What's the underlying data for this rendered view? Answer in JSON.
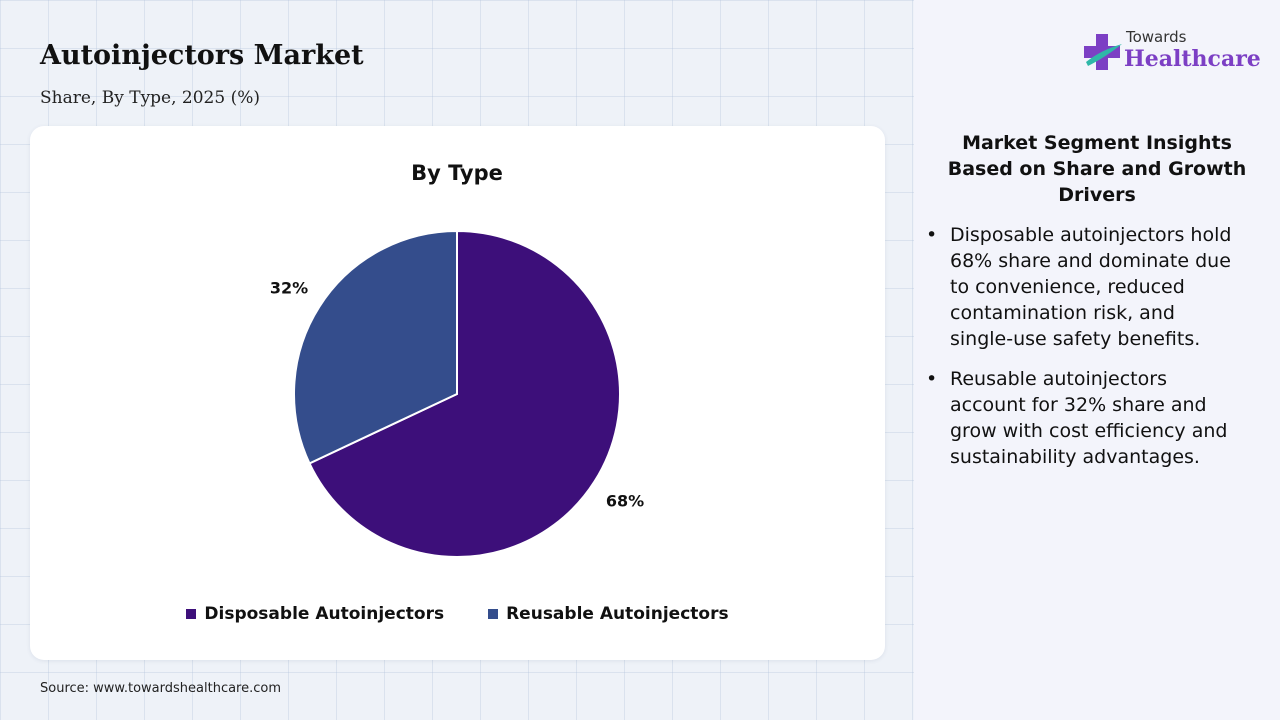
{
  "header": {
    "title": "Autoinjectors Market",
    "subtitle": "Share, By Type, 2025 (%)"
  },
  "chart_data": {
    "type": "pie",
    "title": "By Type",
    "unit": "%",
    "slices": [
      {
        "name": "Disposable Autoinjectors",
        "value": 68,
        "label": "68%",
        "color": "#3d0f7a"
      },
      {
        "name": "Reusable Autoinjectors",
        "value": 32,
        "label": "32%",
        "color": "#344d8c"
      }
    ],
    "start_angle_deg": 0,
    "direction": "clockwise",
    "legend_position": "bottom"
  },
  "source": "Source: www.towardshealthcare.com",
  "logo": {
    "line1": "Towards",
    "line2": "Healthcare",
    "colors": {
      "cross": "#7c3fc4",
      "accent": "#2fb7a8"
    }
  },
  "insights": {
    "title": "Market Segment Insights Based on Share and Growth Drivers",
    "bullet_icon": "bullet-dot-icon",
    "items": [
      "Disposable autoinjectors hold 68% share and dominate due to convenience, reduced contamination risk, and single-use safety benefits.",
      "Reusable autoinjectors account for 32% share and grow with cost efficiency and sustainability advantages."
    ]
  }
}
